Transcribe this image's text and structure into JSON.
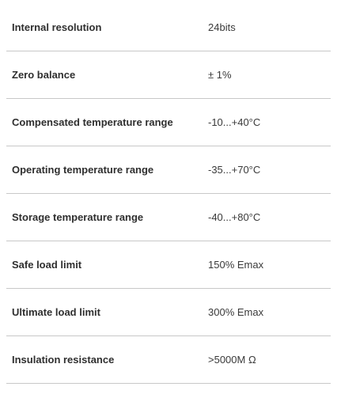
{
  "specs": [
    {
      "label": "Internal resolution",
      "value": "24bits"
    },
    {
      "label": "Zero balance",
      "value": "± 1%"
    },
    {
      "label": "Compensated temperature range",
      "value": "-10...+40°C"
    },
    {
      "label": "Operating temperature range",
      "value": "-35...+70°C"
    },
    {
      "label": "Storage temperature range",
      "value": "-40...+80°C"
    },
    {
      "label": "Safe load limit",
      "value": "150% Emax"
    },
    {
      "label": "Ultimate load limit",
      "value": "300% Emax"
    },
    {
      "label": "Insulation resistance",
      "value": ">5000M Ω"
    }
  ]
}
